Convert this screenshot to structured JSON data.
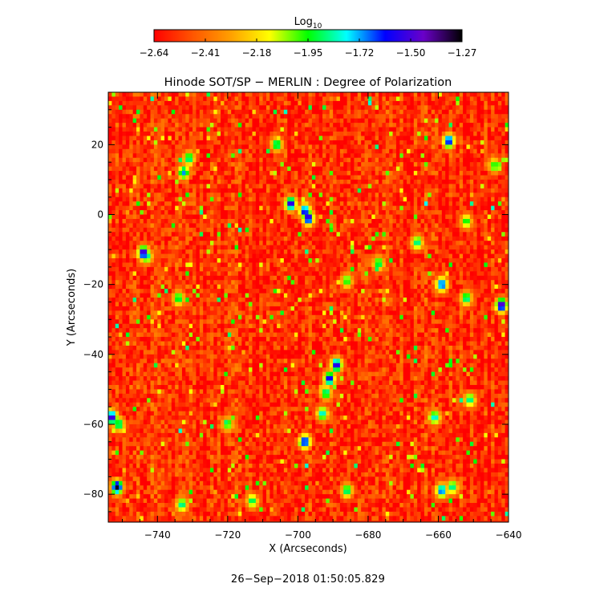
{
  "chart_data": {
    "type": "heatmap",
    "title": "Hinode SOT/SP − MERLIN : Degree of Polarization",
    "xlabel": "X (Arcseconds)",
    "ylabel": "Y (Arcseconds)",
    "xlim": [
      -754,
      -640
    ],
    "ylim": [
      -88,
      35
    ],
    "xticks": [
      -740,
      -720,
      -700,
      -680,
      -660,
      -640
    ],
    "yticks": [
      20,
      0,
      -20,
      -40,
      -60,
      -80
    ],
    "colorbar": {
      "label_main": "Log",
      "label_sub": "10",
      "range": [
        -2.64,
        -1.27
      ],
      "ticks": [
        "−2.64",
        "−2.41",
        "−2.18",
        "−1.95",
        "−1.72",
        "−1.50",
        "−1.27"
      ],
      "colormap": [
        "#ff0000",
        "#ff5500",
        "#ffa000",
        "#ffff00",
        "#00ff00",
        "#00ffff",
        "#0000ff",
        "#6a00c8",
        "#000000"
      ]
    },
    "background_level": -2.55,
    "features": [
      {
        "x": -732.5,
        "y": 12,
        "level": -1.7
      },
      {
        "x": -731,
        "y": 16,
        "level": -1.8
      },
      {
        "x": -706,
        "y": 20,
        "level": -1.8
      },
      {
        "x": -702,
        "y": 3,
        "level": -1.45
      },
      {
        "x": -698,
        "y": 1,
        "level": -1.5
      },
      {
        "x": -697,
        "y": -1,
        "level": -1.4
      },
      {
        "x": -744,
        "y": -11,
        "level": -1.4
      },
      {
        "x": -743,
        "y": -12,
        "level": -1.8
      },
      {
        "x": -666,
        "y": -8,
        "level": -1.8
      },
      {
        "x": -677,
        "y": -14,
        "level": -1.85
      },
      {
        "x": -686,
        "y": -19,
        "level": -1.9
      },
      {
        "x": -659,
        "y": -20,
        "level": -1.55
      },
      {
        "x": -642,
        "y": -26,
        "level": -1.35
      },
      {
        "x": -652,
        "y": -24,
        "level": -1.8
      },
      {
        "x": -734,
        "y": -24,
        "level": -1.85
      },
      {
        "x": -689,
        "y": -43,
        "level": -1.45
      },
      {
        "x": -691,
        "y": -47,
        "level": -1.5
      },
      {
        "x": -692,
        "y": -51,
        "level": -1.8
      },
      {
        "x": -693,
        "y": -57,
        "level": -1.75
      },
      {
        "x": -651,
        "y": -53,
        "level": -1.8
      },
      {
        "x": -661,
        "y": -58,
        "level": -1.75
      },
      {
        "x": -753,
        "y": -58,
        "level": -1.4
      },
      {
        "x": -751,
        "y": -60,
        "level": -1.8
      },
      {
        "x": -698,
        "y": -65,
        "level": -1.5
      },
      {
        "x": -751.5,
        "y": -78,
        "level": -1.3
      },
      {
        "x": -659,
        "y": -79,
        "level": -1.6
      },
      {
        "x": -656,
        "y": -78,
        "level": -1.8
      },
      {
        "x": -686,
        "y": -79,
        "level": -1.8
      },
      {
        "x": -733,
        "y": -83,
        "level": -1.8
      },
      {
        "x": -652,
        "y": -2,
        "level": -1.9
      },
      {
        "x": -644,
        "y": 14,
        "level": -1.9
      },
      {
        "x": -713,
        "y": -82,
        "level": -1.85
      },
      {
        "x": -720,
        "y": -60,
        "level": -1.9
      },
      {
        "x": -657,
        "y": 21,
        "level": -1.5
      }
    ]
  },
  "timestamp": "26−Sep−2018 01:50:05.829"
}
